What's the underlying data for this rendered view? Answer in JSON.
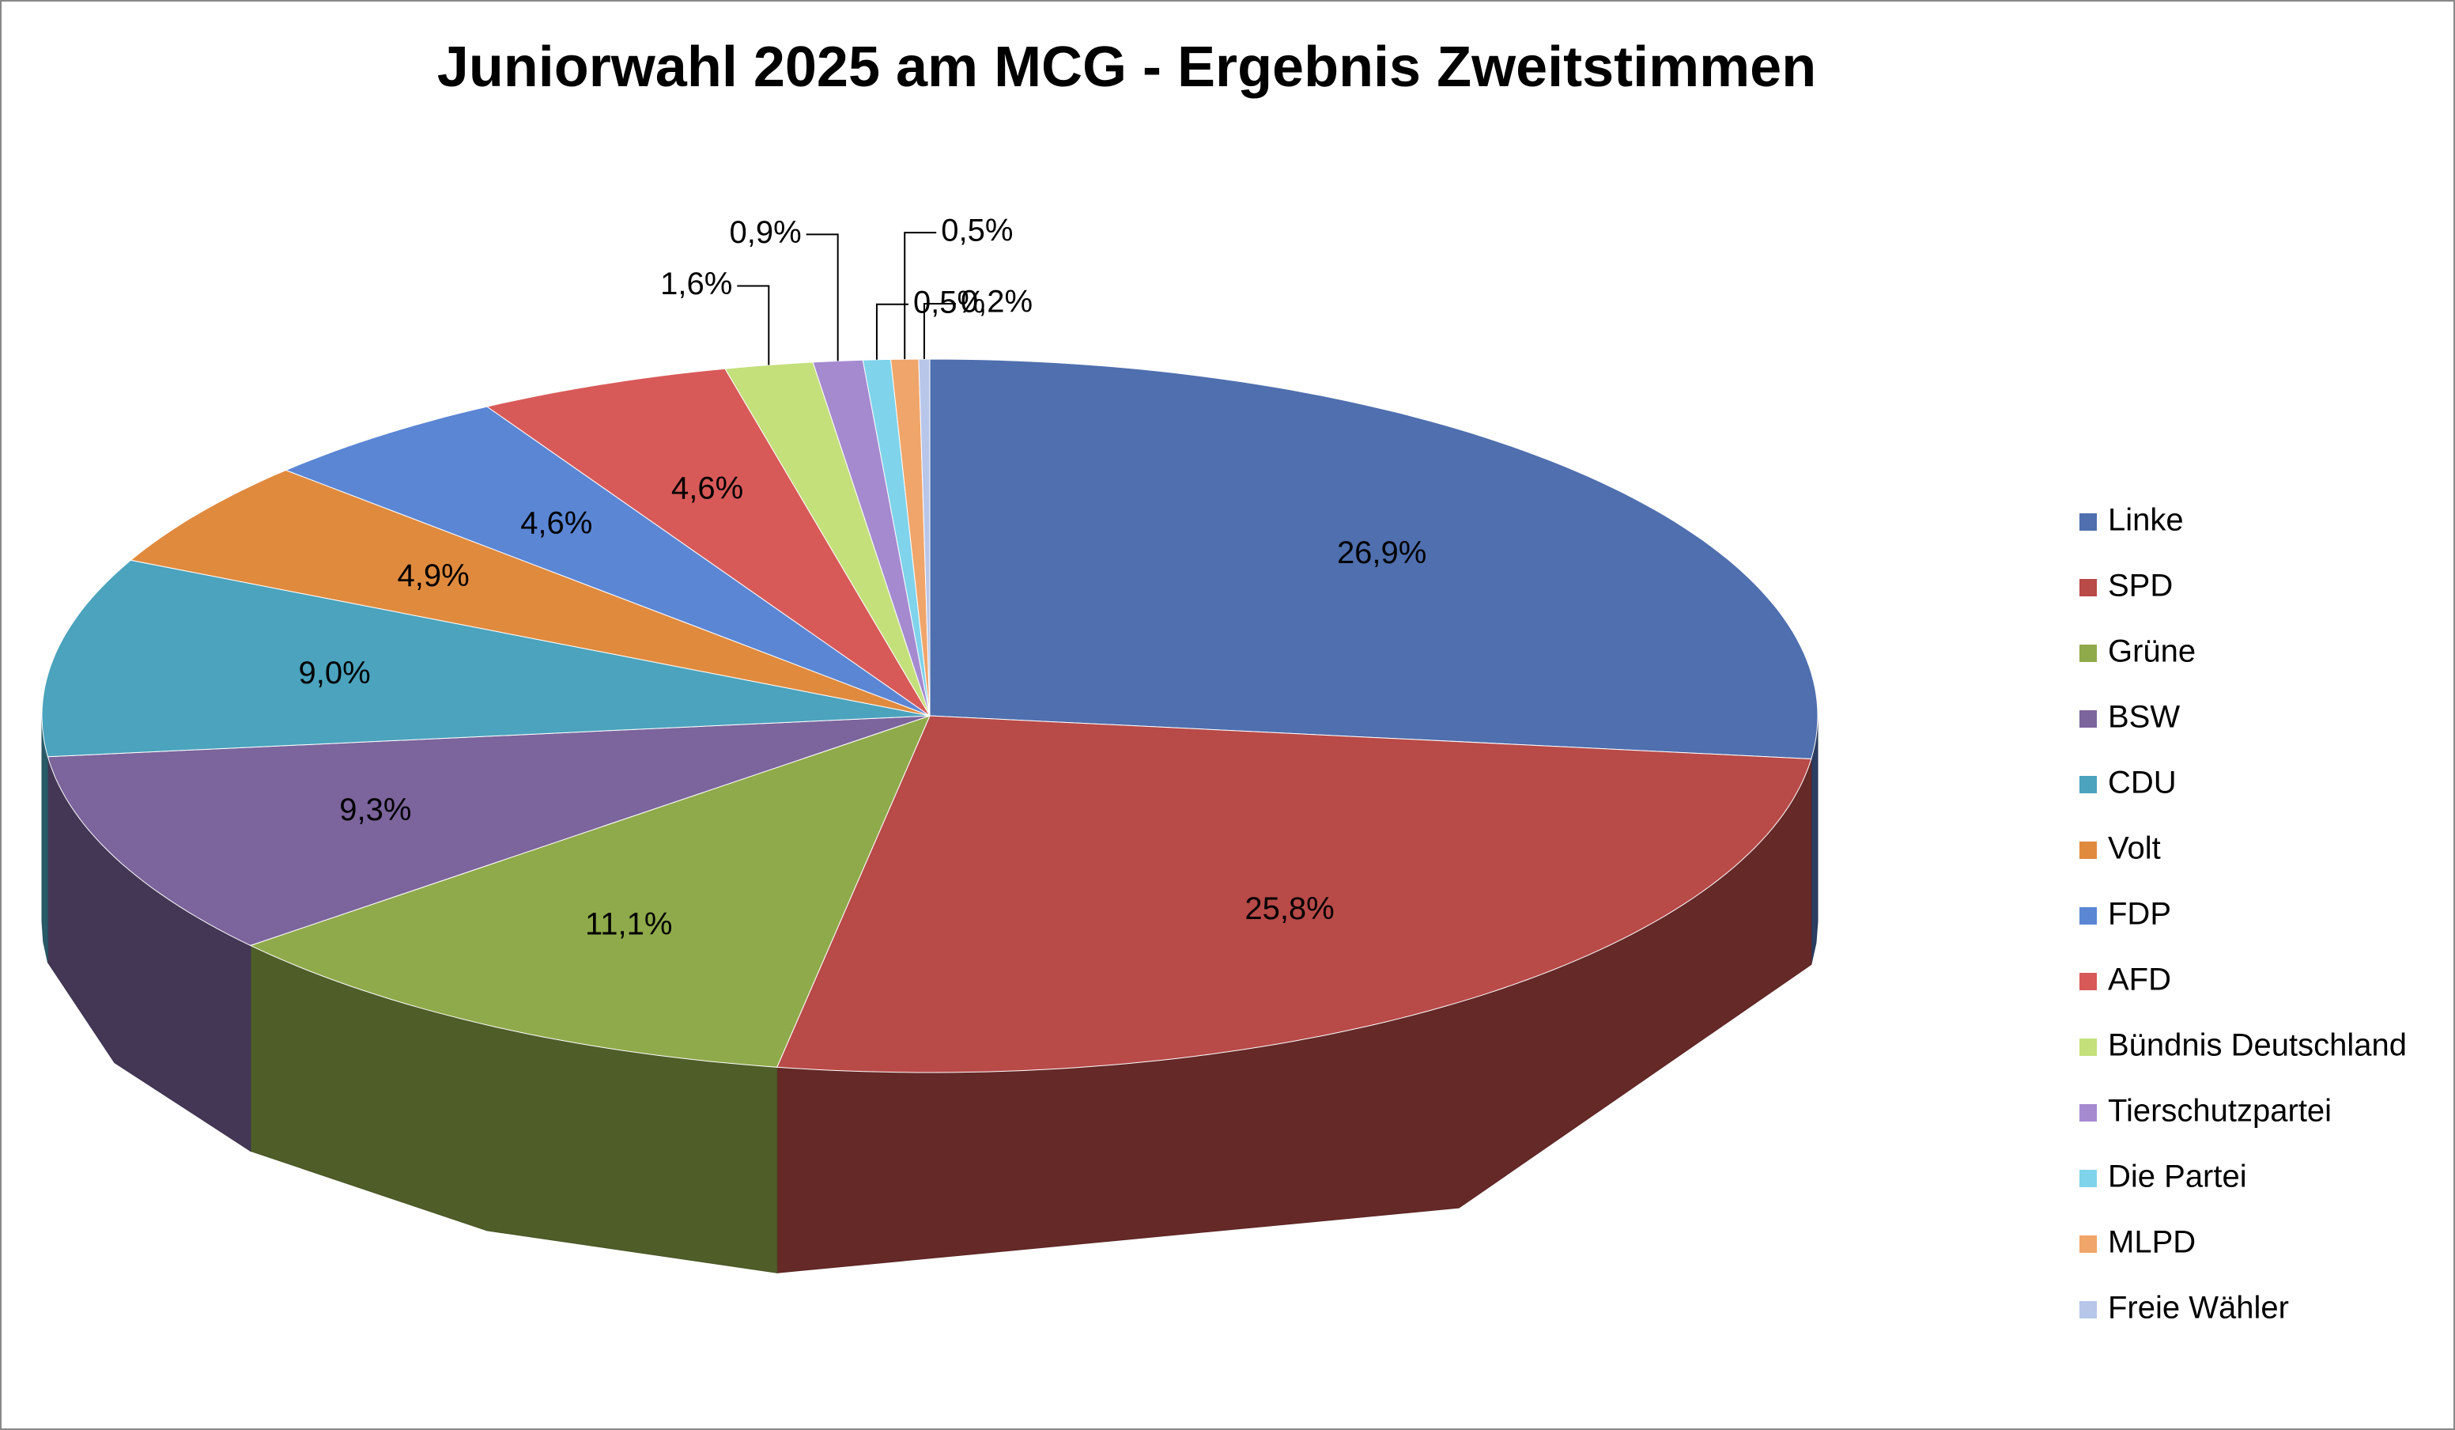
{
  "chart_data": {
    "type": "pie",
    "title": "Juniorwahl 2025 am MCG - Ergebnis Zweitstimmen",
    "categories": [
      "Linke",
      "SPD",
      "Grüne",
      "BSW",
      "CDU",
      "Volt",
      "FDP",
      "AFD",
      "Bündnis Deutschland",
      "Tierschutzpartei",
      "Die Partei",
      "MLPD",
      "Freie Wähler"
    ],
    "values": [
      26.9,
      25.8,
      11.1,
      9.3,
      9.0,
      4.9,
      4.6,
      4.6,
      1.6,
      0.9,
      0.5,
      0.5,
      0.2
    ],
    "value_labels": [
      "26,9%",
      "25,8%",
      "11,1%",
      "9,3%",
      "9,0%",
      "4,9%",
      "4,6%",
      "4,6%",
      "1,6%",
      "0,9%",
      "0,5%",
      "0,5%",
      "0,2%"
    ],
    "colors": [
      "#4f6fae",
      "#b84a48",
      "#8faa4a",
      "#7c649c",
      "#4ba3bd",
      "#e08a3e",
      "#5b86d4",
      "#d85a58",
      "#c3e07a",
      "#a58ad0",
      "#7fd3ea",
      "#f0a56a",
      "#b8c6ea"
    ],
    "legend": "right"
  }
}
